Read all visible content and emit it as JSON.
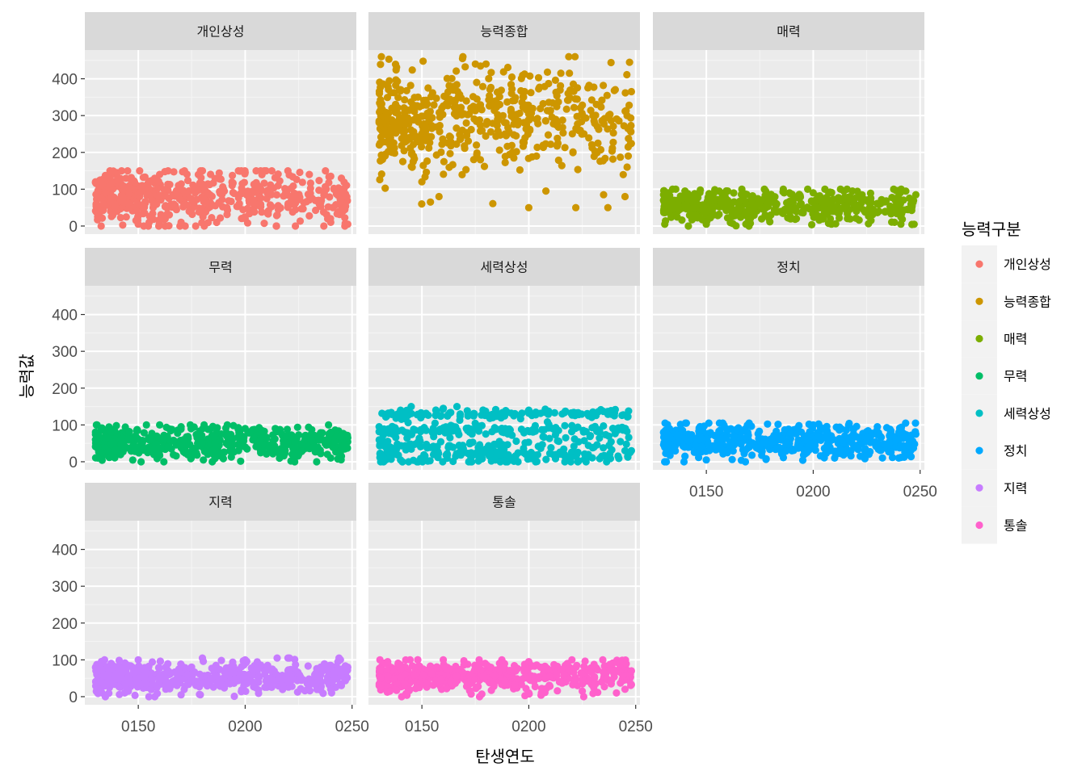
{
  "chart_data": {
    "type": "scatter",
    "facet": "wrap",
    "xlabel": "탄생연도",
    "ylabel": "능력값",
    "xlim": [
      125,
      252
    ],
    "ylim": [
      -22,
      478
    ],
    "x_ticks": [
      150,
      200,
      250
    ],
    "x_tick_labels": [
      "0150",
      "0200",
      "0250"
    ],
    "y_ticks": [
      0,
      100,
      200,
      300,
      400
    ],
    "y_tick_labels": [
      "0",
      "100",
      "200",
      "300",
      "400"
    ],
    "grid": true,
    "legend": {
      "title": "능력구분",
      "placement": "right",
      "entries": [
        "개인상성",
        "능력종합",
        "매력",
        "무력",
        "세력상성",
        "정치",
        "지력",
        "통솔"
      ]
    },
    "panels": [
      {
        "name": "개인상성",
        "color": "#F8766D",
        "y_range": [
          0,
          150
        ],
        "y_center": 80,
        "y_sd": 40,
        "x_range": [
          130,
          248
        ],
        "n": 500,
        "points": [
          [
            130,
            120
          ],
          [
            131,
            80
          ],
          [
            131,
            25
          ],
          [
            140,
            145
          ],
          [
            145,
            150
          ],
          [
            160,
            140
          ],
          [
            180,
            150
          ],
          [
            200,
            145
          ],
          [
            220,
            150
          ],
          [
            230,
            140
          ],
          [
            240,
            135
          ],
          [
            245,
            130
          ],
          [
            248,
            5
          ],
          [
            240,
            10
          ],
          [
            215,
            30
          ],
          [
            200,
            20
          ],
          [
            170,
            10
          ],
          [
            150,
            5
          ]
        ]
      },
      {
        "name": "능력종합",
        "color": "#CD9600",
        "y_range": [
          30,
          460
        ],
        "y_center": 290,
        "y_sd": 70,
        "x_range": [
          130,
          248
        ],
        "n": 550,
        "points": [
          [
            133,
            300
          ],
          [
            136,
            200
          ],
          [
            150,
            120
          ],
          [
            154,
            65
          ],
          [
            158,
            80
          ],
          [
            169,
            455
          ],
          [
            175,
            440
          ],
          [
            180,
            440
          ],
          [
            200,
            50
          ],
          [
            208,
            95
          ],
          [
            215,
            415
          ],
          [
            219,
            415
          ],
          [
            222,
            50
          ],
          [
            235,
            85
          ],
          [
            237,
            50
          ],
          [
            245,
            80
          ],
          [
            246,
            300
          ],
          [
            248,
            365
          ],
          [
            246,
            160
          ],
          [
            230,
            300
          ]
        ]
      },
      {
        "name": "매력",
        "color": "#7CAE00",
        "y_range": [
          0,
          100
        ],
        "y_center": 55,
        "y_sd": 22,
        "x_range": [
          130,
          248
        ],
        "n": 500,
        "points": [
          [
            130,
            85
          ],
          [
            130,
            70
          ],
          [
            140,
            95
          ],
          [
            160,
            95
          ],
          [
            200,
            90
          ],
          [
            240,
            75
          ],
          [
            248,
            85
          ],
          [
            241,
            5
          ],
          [
            238,
            10
          ],
          [
            227,
            15
          ],
          [
            216,
            20
          ],
          [
            150,
            5
          ],
          [
            170,
            5
          ]
        ]
      },
      {
        "name": "무력",
        "color": "#00BE67",
        "y_range": [
          0,
          100
        ],
        "y_center": 55,
        "y_sd": 22,
        "x_range": [
          130,
          248
        ],
        "n": 500,
        "points": [
          [
            130,
            60
          ],
          [
            131,
            10
          ],
          [
            131,
            40
          ],
          [
            160,
            100
          ],
          [
            170,
            95
          ],
          [
            200,
            90
          ],
          [
            240,
            80
          ],
          [
            245,
            70
          ],
          [
            248,
            65
          ],
          [
            245,
            15
          ],
          [
            240,
            10
          ],
          [
            222,
            20
          ]
        ]
      },
      {
        "name": "세력상성",
        "color": "#00BFC4",
        "y_range": [
          0,
          150
        ],
        "y_center": 70,
        "y_sd": 40,
        "x_range": [
          130,
          248
        ],
        "n": 500,
        "bands": [
          [
            130,
            8
          ],
          [
            85,
            8
          ],
          [
            45,
            12
          ],
          [
            12,
            12
          ]
        ],
        "points": [
          [
            130,
            95
          ],
          [
            131,
            80
          ],
          [
            132,
            55
          ],
          [
            140,
            140
          ],
          [
            145,
            150
          ],
          [
            160,
            145
          ],
          [
            200,
            140
          ],
          [
            230,
            135
          ],
          [
            240,
            125
          ],
          [
            245,
            30
          ],
          [
            248,
            30
          ],
          [
            140,
            5
          ],
          [
            150,
            5
          ]
        ]
      },
      {
        "name": "정치",
        "color": "#00A9FF",
        "y_range": [
          0,
          105
        ],
        "y_center": 55,
        "y_sd": 22,
        "x_range": [
          130,
          248
        ],
        "n": 500,
        "points": [
          [
            130,
            80
          ],
          [
            131,
            65
          ],
          [
            140,
            15
          ],
          [
            150,
            5
          ],
          [
            170,
            105
          ],
          [
            200,
            100
          ],
          [
            230,
            95
          ],
          [
            240,
            80
          ],
          [
            248,
            75
          ],
          [
            245,
            20
          ],
          [
            240,
            10
          ],
          [
            222,
            15
          ],
          [
            210,
            10
          ]
        ]
      },
      {
        "name": "지력",
        "color": "#C77CFF",
        "y_range": [
          0,
          105
        ],
        "y_center": 55,
        "y_sd": 22,
        "x_range": [
          130,
          248
        ],
        "n": 500,
        "points": [
          [
            130,
            80
          ],
          [
            131,
            70
          ],
          [
            133,
            10
          ],
          [
            137,
            35
          ],
          [
            150,
            100
          ],
          [
            180,
            105
          ],
          [
            200,
            100
          ],
          [
            240,
            85
          ],
          [
            248,
            80
          ],
          [
            245,
            30
          ],
          [
            240,
            20
          ],
          [
            170,
            5
          ]
        ]
      },
      {
        "name": "통솔",
        "color": "#FF61CC",
        "y_range": [
          0,
          100
        ],
        "y_center": 55,
        "y_sd": 22,
        "x_range": [
          130,
          248
        ],
        "n": 500,
        "points": [
          [
            134,
            95
          ],
          [
            134,
            55
          ],
          [
            135,
            15
          ],
          [
            140,
            75
          ],
          [
            160,
            100
          ],
          [
            200,
            95
          ],
          [
            240,
            70
          ],
          [
            248,
            70
          ],
          [
            245,
            20
          ],
          [
            241,
            10
          ],
          [
            225,
            15
          ],
          [
            200,
            10
          ]
        ]
      }
    ]
  }
}
